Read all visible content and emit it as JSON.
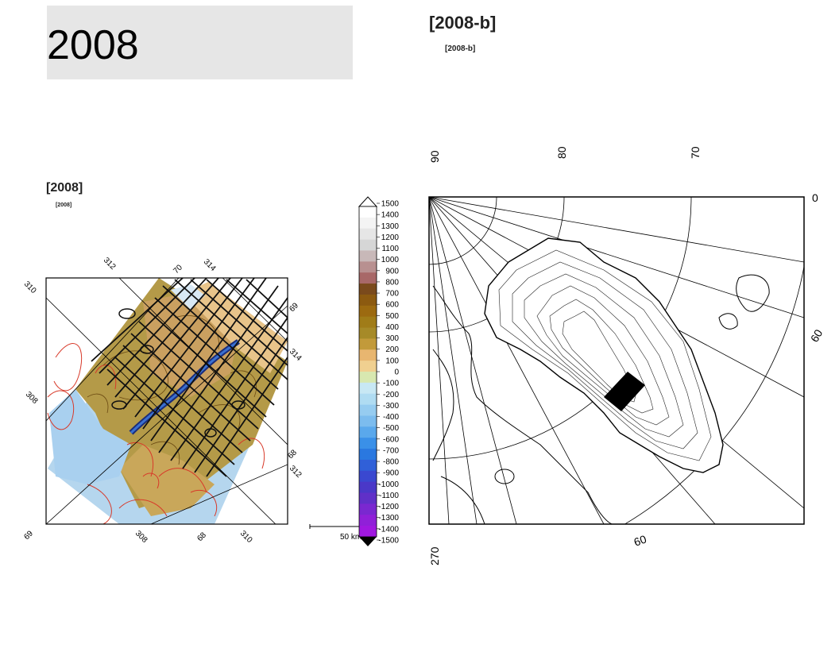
{
  "slide": {
    "title": "2008",
    "right_heading": "[2008-b]",
    "right_subheading": "[2008-b]",
    "left_heading": "[2008]",
    "left_subheading": "[2008]"
  },
  "left_map": {
    "lon_labels_top": [
      "310",
      "312",
      "314"
    ],
    "lat_labels_top": [
      "70"
    ],
    "right_labels": [
      "69",
      "314"
    ],
    "left_labels": [
      "308"
    ],
    "bottom_labels": [
      "69",
      "308",
      "68",
      "310"
    ],
    "right_lower_labels": [
      "68",
      "312"
    ],
    "scale_label": "50 km"
  },
  "colorbar": {
    "ticks": [
      "1500",
      "1400",
      "1300",
      "1200",
      "1100",
      "1000",
      "900",
      "800",
      "700",
      "600",
      "500",
      "400",
      "300",
      "200",
      "100",
      "0",
      "-100",
      "-200",
      "-300",
      "-400",
      "-500",
      "-600",
      "-700",
      "-800",
      "-900",
      "-1000",
      "-1100",
      "-1200",
      "-1300",
      "-1400",
      "-1500"
    ],
    "colors": [
      "#ffffff",
      "#f4f4f4",
      "#e6e6e6",
      "#d6d6d6",
      "#c8b8b8",
      "#b89090",
      "#a86868",
      "#7a4a1c",
      "#8c5a10",
      "#9c6a10",
      "#a07c18",
      "#a68a28",
      "#c29a3a",
      "#e8b670",
      "#f0d090",
      "#d8e8b0",
      "#c8e8f4",
      "#b0dcf2",
      "#96ccf0",
      "#7cbcee",
      "#5aa8ec",
      "#3a90e8",
      "#2a78e0",
      "#3060d8",
      "#3a48d0",
      "#4a38c8",
      "#6030c8",
      "#7a28d0",
      "#9020d8",
      "#a018e0"
    ]
  },
  "right_map": {
    "top_labels": [
      "90",
      "80",
      "70"
    ],
    "right_labels": [
      "0",
      "60"
    ],
    "bottom_labels": [
      "270",
      "60"
    ]
  }
}
